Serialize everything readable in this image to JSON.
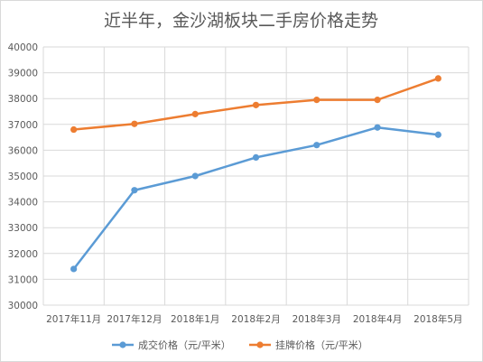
{
  "chart_data": {
    "type": "line",
    "title": "近半年，金沙湖板块二手房价格走势",
    "categories": [
      "2017年11月",
      "2017年12月",
      "2018年1月",
      "2018年2月",
      "2018年3月",
      "2018年4月",
      "2018年5月"
    ],
    "ylim": [
      30000,
      40000
    ],
    "yticks": [
      30000,
      31000,
      32000,
      33000,
      34000,
      35000,
      36000,
      37000,
      38000,
      39000,
      40000
    ],
    "grid": true,
    "legend_position": "bottom",
    "series": [
      {
        "name": "成交价格（元/平米）",
        "color": "#5b9bd5",
        "values": [
          31400,
          34450,
          35000,
          35720,
          36200,
          36880,
          36600
        ]
      },
      {
        "name": "挂牌价格（元/平米）",
        "color": "#ed7d31",
        "values": [
          36800,
          37020,
          37400,
          37750,
          37950,
          37950,
          38780
        ]
      }
    ]
  }
}
